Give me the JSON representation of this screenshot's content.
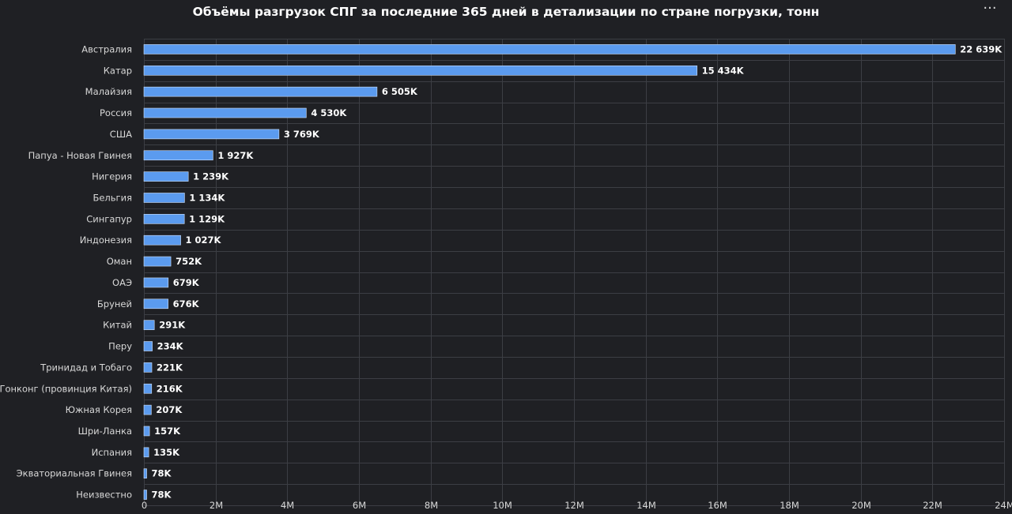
{
  "header": {
    "title": "Объёмы разгрузок СПГ за последние 365 дней в детализации по стране погрузки, тонн",
    "menu_icon": "more-horizontal-icon",
    "menu_glyph": "···"
  },
  "colors": {
    "background": "#1f2024",
    "bar": "#5b9bef",
    "grid": "#3c3e44",
    "text": "#d8d8d8"
  },
  "chart_data": {
    "type": "bar",
    "orientation": "horizontal",
    "title": "Объёмы разгрузок СПГ за последние 365 дней в детализации по стране погрузки, тонн",
    "xlabel": "",
    "ylabel": "",
    "xlim": [
      0,
      24000000
    ],
    "grid": true,
    "legend": "none",
    "x_tick_labels": [
      "0",
      "2M",
      "4M",
      "6M",
      "8M",
      "10M",
      "12M",
      "14M",
      "16M",
      "18M",
      "20M",
      "22M",
      "24M"
    ],
    "categories": [
      "Австралия",
      "Катар",
      "Малайзия",
      "Россия",
      "США",
      "Папуа - Новая Гвинея",
      "Нигерия",
      "Бельгия",
      "Сингапур",
      "Индонезия",
      "Оман",
      "ОАЭ",
      "Бруней",
      "Китай",
      "Перу",
      "Тринидад и Тобаго",
      "Гонконг (провинция Китая)",
      "Южная Корея",
      "Шри-Ланка",
      "Испания",
      "Экваториальная Гвинея",
      "Неизвестно"
    ],
    "values": [
      22639000,
      15434000,
      6505000,
      4530000,
      3769000,
      1927000,
      1239000,
      1134000,
      1129000,
      1027000,
      752000,
      679000,
      676000,
      291000,
      234000,
      221000,
      216000,
      207000,
      157000,
      135000,
      78000,
      78000
    ],
    "value_labels": [
      "22 639K",
      "15 434K",
      "6 505K",
      "4 530K",
      "3 769K",
      "1 927K",
      "1 239K",
      "1 134K",
      "1 129K",
      "1 027K",
      "752K",
      "679K",
      "676K",
      "291K",
      "234K",
      "221K",
      "216K",
      "207K",
      "157K",
      "135K",
      "78K",
      "78K"
    ]
  }
}
